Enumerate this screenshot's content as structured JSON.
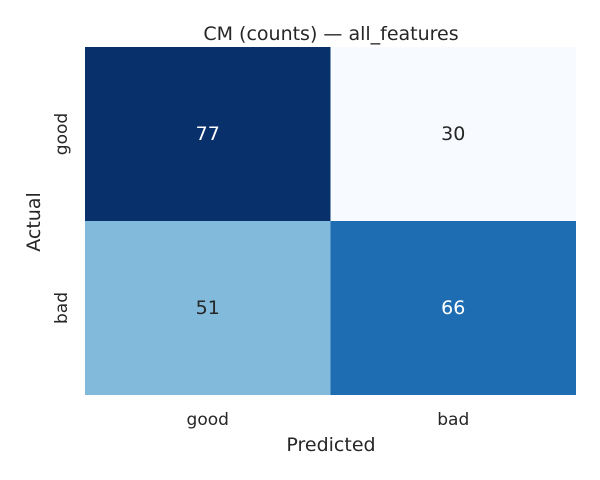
{
  "chart_data": {
    "type": "heatmap",
    "title": "CM (counts) — all_features",
    "xlabel": "Predicted",
    "ylabel": "Actual",
    "x_categories": [
      "good",
      "bad"
    ],
    "y_categories": [
      "good",
      "bad"
    ],
    "matrix": [
      [
        77,
        30
      ],
      [
        51,
        66
      ]
    ],
    "value_range": [
      30,
      77
    ],
    "colormap": "Blues",
    "colorbar": false,
    "grid": false
  }
}
